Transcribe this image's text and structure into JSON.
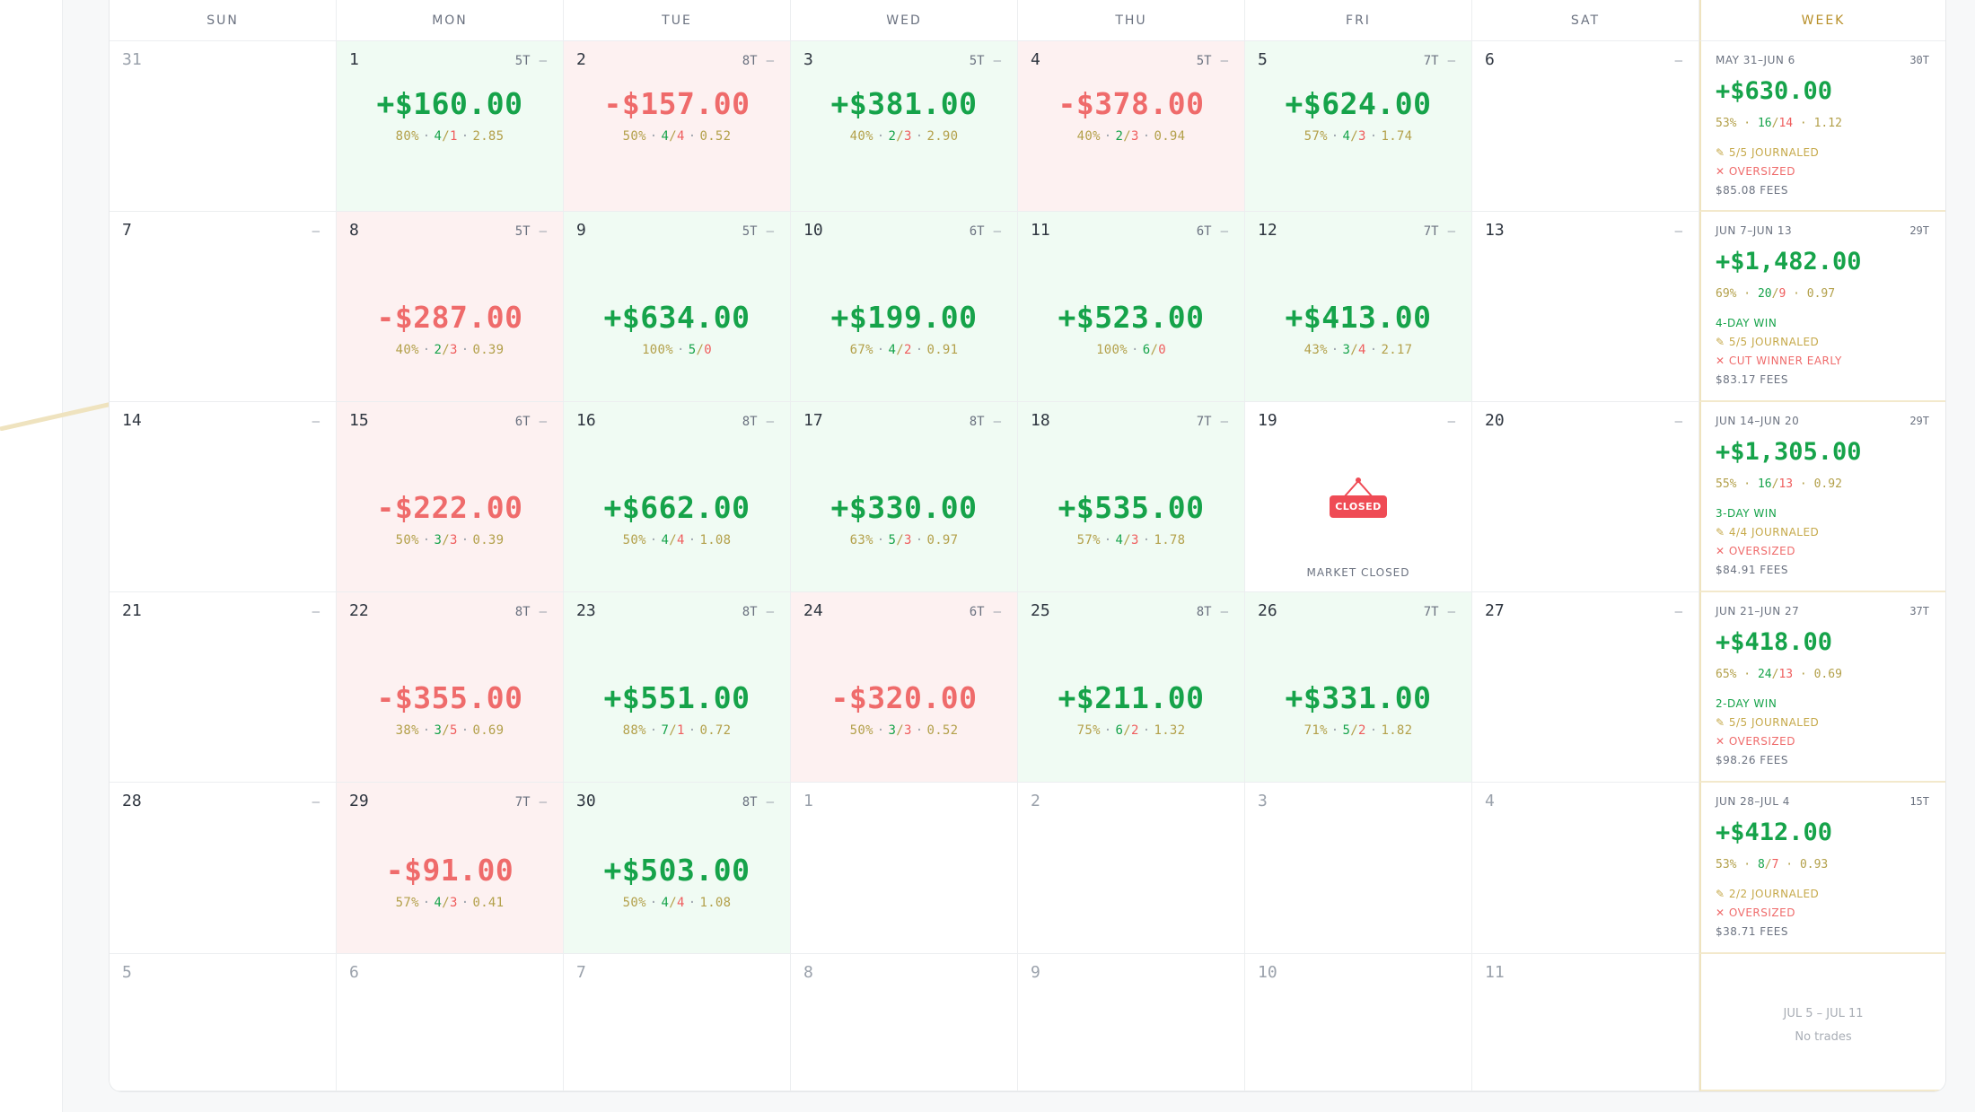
{
  "headers": {
    "sun": "SUN",
    "mon": "MON",
    "tue": "TUE",
    "wed": "WED",
    "thu": "THU",
    "fri": "FRI",
    "sat": "SAT",
    "week": "WEEK"
  },
  "weeks": [
    {
      "days": [
        {
          "day": "31",
          "outside": true,
          "tc": "",
          "dash": ""
        },
        {
          "day": "1",
          "tc": "5T",
          "dash": "–",
          "pnl": "+$160.00",
          "result": "win",
          "pct": "80%",
          "w": "4",
          "l": "1",
          "ratio": "2.85"
        },
        {
          "day": "2",
          "tc": "8T",
          "dash": "–",
          "pnl": "-$157.00",
          "result": "loss",
          "pct": "50%",
          "w": "4",
          "l": "4",
          "ratio": "0.52"
        },
        {
          "day": "3",
          "tc": "5T",
          "dash": "–",
          "pnl": "+$381.00",
          "result": "win",
          "pct": "40%",
          "w": "2",
          "l": "3",
          "ratio": "2.90"
        },
        {
          "day": "4",
          "tc": "5T",
          "dash": "–",
          "pnl": "-$378.00",
          "result": "loss",
          "pct": "40%",
          "w": "2",
          "l": "3",
          "ratio": "0.94"
        },
        {
          "day": "5",
          "tc": "7T",
          "dash": "–",
          "pnl": "+$624.00",
          "result": "win",
          "pct": "57%",
          "w": "4",
          "l": "3",
          "ratio": "1.74"
        },
        {
          "day": "6",
          "tc": "",
          "dash": "–"
        }
      ],
      "summary": {
        "range": "MAY 31–JUN 6",
        "tc": "30T",
        "pnl": "+$630.00",
        "pct": "53%",
        "w": "16",
        "l": "14",
        "ratio": "1.12",
        "lines": [
          {
            "type": "journaled",
            "text": "✎ 5/5 JOURNALED"
          },
          {
            "type": "flag",
            "text": "✕ OVERSIZED"
          },
          {
            "type": "fees",
            "text": "$85.08 FEES"
          }
        ]
      }
    },
    {
      "days": [
        {
          "day": "7",
          "tc": "",
          "dash": "–"
        },
        {
          "day": "8",
          "tc": "5T",
          "dash": "–",
          "pnl": "-$287.00",
          "result": "loss",
          "pct": "40%",
          "w": "2",
          "l": "3",
          "ratio": "0.39"
        },
        {
          "day": "9",
          "tc": "5T",
          "dash": "–",
          "pnl": "+$634.00",
          "result": "win",
          "pct": "100%",
          "w": "5",
          "l": "0",
          "ratio": ""
        },
        {
          "day": "10",
          "tc": "6T",
          "dash": "–",
          "pnl": "+$199.00",
          "result": "win",
          "pct": "67%",
          "w": "4",
          "l": "2",
          "ratio": "0.91"
        },
        {
          "day": "11",
          "tc": "6T",
          "dash": "–",
          "pnl": "+$523.00",
          "result": "win",
          "pct": "100%",
          "w": "6",
          "l": "0",
          "ratio": ""
        },
        {
          "day": "12",
          "tc": "7T",
          "dash": "–",
          "pnl": "+$413.00",
          "result": "win",
          "pct": "43%",
          "w": "3",
          "l": "4",
          "ratio": "2.17"
        },
        {
          "day": "13",
          "tc": "",
          "dash": "–"
        }
      ],
      "summary": {
        "range": "JUN 7–JUN 13",
        "tc": "29T",
        "pnl": "+$1,482.00",
        "pct": "69%",
        "w": "20",
        "l": "9",
        "ratio": "0.97",
        "lines": [
          {
            "type": "streak",
            "text": "4-DAY WIN"
          },
          {
            "type": "journaled",
            "text": "✎ 5/5 JOURNALED"
          },
          {
            "type": "flag",
            "text": "✕ CUT WINNER EARLY"
          },
          {
            "type": "fees",
            "text": "$83.17 FEES"
          }
        ]
      }
    },
    {
      "days": [
        {
          "day": "14",
          "tc": "",
          "dash": "–"
        },
        {
          "day": "15",
          "tc": "6T",
          "dash": "–",
          "pnl": "-$222.00",
          "result": "loss",
          "pct": "50%",
          "w": "3",
          "l": "3",
          "ratio": "0.39"
        },
        {
          "day": "16",
          "tc": "8T",
          "dash": "–",
          "pnl": "+$662.00",
          "result": "win",
          "pct": "50%",
          "w": "4",
          "l": "4",
          "ratio": "1.08"
        },
        {
          "day": "17",
          "tc": "8T",
          "dash": "–",
          "pnl": "+$330.00",
          "result": "win",
          "pct": "63%",
          "w": "5",
          "l": "3",
          "ratio": "0.97"
        },
        {
          "day": "18",
          "tc": "7T",
          "dash": "–",
          "pnl": "+$535.00",
          "result": "win",
          "pct": "57%",
          "w": "4",
          "l": "3",
          "ratio": "1.78"
        },
        {
          "day": "19",
          "tc": "",
          "dash": "–",
          "closed": true,
          "sign": "CLOSED",
          "closed_label": "MARKET CLOSED"
        },
        {
          "day": "20",
          "tc": "",
          "dash": "–"
        }
      ],
      "summary": {
        "range": "JUN 14–JUN 20",
        "tc": "29T",
        "pnl": "+$1,305.00",
        "pct": "55%",
        "w": "16",
        "l": "13",
        "ratio": "0.92",
        "lines": [
          {
            "type": "streak",
            "text": "3-DAY WIN"
          },
          {
            "type": "journaled",
            "text": "✎ 4/4 JOURNALED"
          },
          {
            "type": "flag",
            "text": "✕ OVERSIZED"
          },
          {
            "type": "fees",
            "text": "$84.91 FEES"
          }
        ]
      }
    },
    {
      "days": [
        {
          "day": "21",
          "tc": "",
          "dash": "–"
        },
        {
          "day": "22",
          "tc": "8T",
          "dash": "–",
          "pnl": "-$355.00",
          "result": "loss",
          "pct": "38%",
          "w": "3",
          "l": "5",
          "ratio": "0.69"
        },
        {
          "day": "23",
          "tc": "8T",
          "dash": "–",
          "pnl": "+$551.00",
          "result": "win",
          "pct": "88%",
          "w": "7",
          "l": "1",
          "ratio": "0.72"
        },
        {
          "day": "24",
          "tc": "6T",
          "dash": "–",
          "pnl": "-$320.00",
          "result": "loss",
          "pct": "50%",
          "w": "3",
          "l": "3",
          "ratio": "0.52"
        },
        {
          "day": "25",
          "tc": "8T",
          "dash": "–",
          "pnl": "+$211.00",
          "result": "win",
          "pct": "75%",
          "w": "6",
          "l": "2",
          "ratio": "1.32"
        },
        {
          "day": "26",
          "tc": "7T",
          "dash": "–",
          "pnl": "+$331.00",
          "result": "win",
          "pct": "71%",
          "w": "5",
          "l": "2",
          "ratio": "1.82"
        },
        {
          "day": "27",
          "tc": "",
          "dash": "–"
        }
      ],
      "summary": {
        "range": "JUN 21–JUN 27",
        "tc": "37T",
        "pnl": "+$418.00",
        "pct": "65%",
        "w": "24",
        "l": "13",
        "ratio": "0.69",
        "lines": [
          {
            "type": "streak",
            "text": "2-DAY WIN"
          },
          {
            "type": "journaled",
            "text": "✎ 5/5 JOURNALED"
          },
          {
            "type": "flag",
            "text": "✕ OVERSIZED"
          },
          {
            "type": "fees",
            "text": "$98.26 FEES"
          }
        ]
      }
    },
    {
      "days": [
        {
          "day": "28",
          "tc": "",
          "dash": "–"
        },
        {
          "day": "29",
          "tc": "7T",
          "dash": "–",
          "pnl": "-$91.00",
          "result": "loss",
          "pct": "57%",
          "w": "4",
          "l": "3",
          "ratio": "0.41"
        },
        {
          "day": "30",
          "tc": "8T",
          "dash": "–",
          "pnl": "+$503.00",
          "result": "win",
          "pct": "50%",
          "w": "4",
          "l": "4",
          "ratio": "1.08"
        },
        {
          "day": "1",
          "outside": true,
          "tc": "",
          "dash": ""
        },
        {
          "day": "2",
          "outside": true,
          "tc": "",
          "dash": ""
        },
        {
          "day": "3",
          "outside": true,
          "tc": "",
          "dash": ""
        },
        {
          "day": "4",
          "outside": true,
          "tc": "",
          "dash": ""
        }
      ],
      "summary": {
        "range": "JUN 28–JUL 4",
        "tc": "15T",
        "pnl": "+$412.00",
        "pct": "53%",
        "w": "8",
        "l": "7",
        "ratio": "0.93",
        "lines": [
          {
            "type": "journaled",
            "text": "✎ 2/2 JOURNALED"
          },
          {
            "type": "flag",
            "text": "✕ OVERSIZED"
          },
          {
            "type": "fees",
            "text": "$38.71 FEES"
          }
        ]
      }
    },
    {
      "days": [
        {
          "day": "5",
          "outside": true,
          "tc": "",
          "dash": ""
        },
        {
          "day": "6",
          "outside": true,
          "tc": "",
          "dash": ""
        },
        {
          "day": "7",
          "outside": true,
          "tc": "",
          "dash": ""
        },
        {
          "day": "8",
          "outside": true,
          "tc": "",
          "dash": ""
        },
        {
          "day": "9",
          "outside": true,
          "tc": "",
          "dash": ""
        },
        {
          "day": "10",
          "outside": true,
          "tc": "",
          "dash": ""
        },
        {
          "day": "11",
          "outside": true,
          "tc": "",
          "dash": ""
        }
      ],
      "summary": {
        "empty": true,
        "range": "JUL 5 – JUL 11",
        "note": "No trades"
      }
    }
  ],
  "colors": {
    "win": "#16a34a",
    "loss": "#ef6b6b",
    "accent": "#b8902a",
    "win_bg": "#f0fbf3",
    "loss_bg": "#fdf1f1"
  }
}
